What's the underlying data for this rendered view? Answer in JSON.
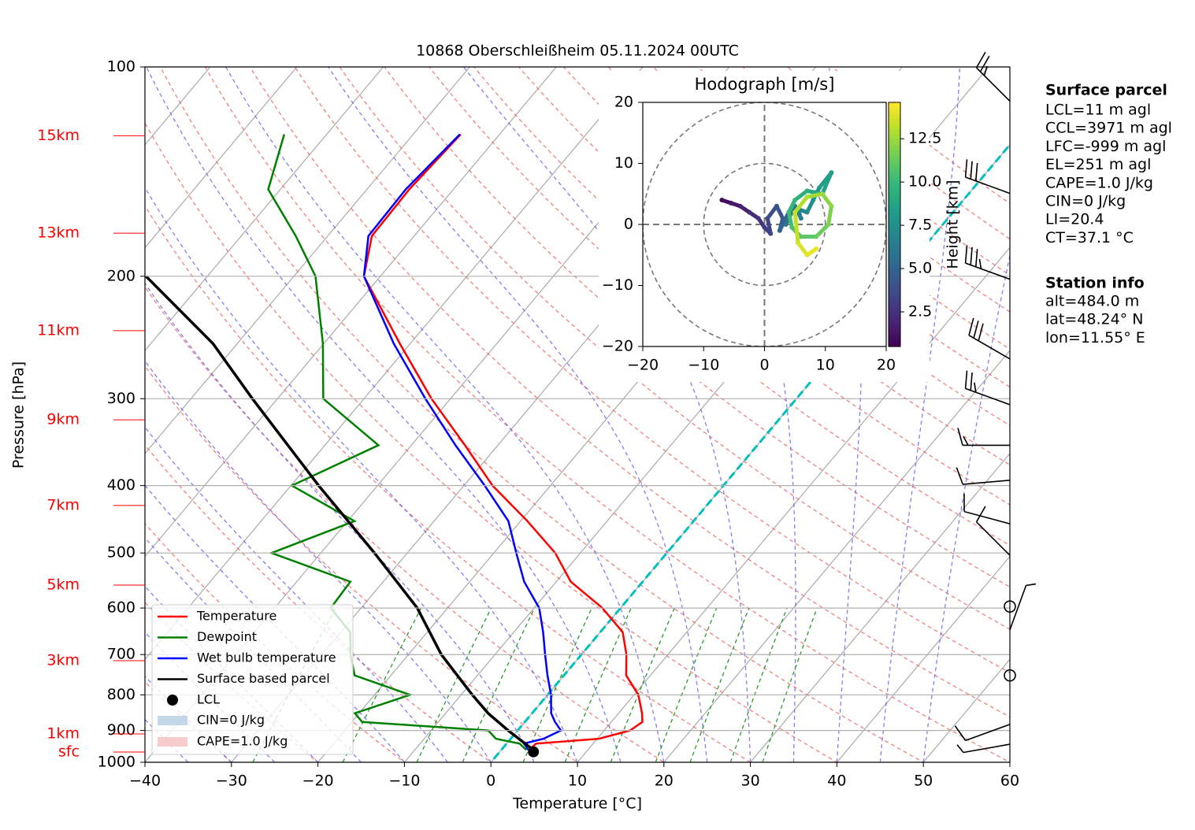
{
  "chart_data": [
    {
      "type": "skewt",
      "title": "10868 Oberschleißheim 05.11.2024 00UTC",
      "xlabel": "Temperature [°C]",
      "ylabel": "Pressure [hPa]",
      "xlim": [
        -40,
        60
      ],
      "ylim": [
        1000,
        100
      ],
      "log_y": true,
      "grid": true,
      "legend": "lower left",
      "xticks": [
        {
          "value": -40,
          "label": "−40"
        },
        {
          "value": -30,
          "label": "−30"
        },
        {
          "value": -20,
          "label": "−20"
        },
        {
          "value": -10,
          "label": "−10"
        },
        0,
        10,
        20,
        30,
        40,
        50,
        60
      ],
      "yticks": [
        100,
        200,
        300,
        400,
        500,
        600,
        700,
        800,
        900,
        1000
      ],
      "pressure": [
        960,
        950,
        940,
        925,
        900,
        875,
        850,
        800,
        750,
        700,
        650,
        600,
        550,
        500,
        450,
        400,
        350,
        300,
        250,
        200,
        175,
        150,
        125
      ],
      "series": [
        {
          "name": "Temperature",
          "color": "#ff0000",
          "values": [
            3.3,
            3.3,
            3.4,
            10.2,
            13.0,
            13.6,
            12.7,
            10.5,
            7.2,
            5.2,
            2.6,
            -2.1,
            -8.3,
            -12.9,
            -19.2,
            -26.7,
            -33.8,
            -42.2,
            -51.2,
            -61.9,
            -64.9,
            -65.1,
            -64.5
          ]
        },
        {
          "name": "Dewpoint",
          "color": "#008000",
          "values": [
            2.9,
            2.2,
            1.5,
            -1.7,
            -3.4,
            -18.8,
            -20.5,
            -15.9,
            -24.2,
            -26.7,
            -28.9,
            -33.5,
            -33.8,
            -45.7,
            -39.2,
            -49.9,
            -43.8,
            -54.7,
            -60.1,
            -67.5,
            -73.7,
            -81.4,
            -84.9
          ]
        },
        {
          "name": "Wet bulb temperature",
          "color": "#0000ff",
          "values": [
            3.1,
            2.6,
            2.0,
            3.8,
            5.0,
            3.5,
            2.2,
            0.4,
            -1.9,
            -4.2,
            -6.6,
            -9.4,
            -13.7,
            -17.4,
            -21.4,
            -27.6,
            -34.9,
            -42.9,
            -51.9,
            -61.9,
            -65.3,
            -65.5,
            -64.6
          ]
        },
        {
          "name": "Surface based parcel",
          "color": "#000000",
          "pressure": [
            960,
            900,
            850,
            800,
            700,
            600,
            500,
            400,
            300,
            250,
            200
          ],
          "values": [
            3.7,
            -1.1,
            -5.1,
            -8.7,
            -16.2,
            -23.5,
            -33.8,
            -46.8,
            -62.9,
            -72.8,
            -87.1
          ]
        }
      ],
      "lcl": {
        "name": "LCL",
        "pressure": 966,
        "temperature": 3.9
      },
      "cin": {
        "name": "CIN=0 J/kg",
        "color": "#aac8e0"
      },
      "cape": {
        "name": "CAPE=1.0 J/kg",
        "color": "#f4b6b6"
      },
      "height_labels": [
        {
          "label": "15km",
          "pressure": 125.6
        },
        {
          "label": "13km",
          "pressure": 173.4
        },
        {
          "label": "11km",
          "pressure": 239.5
        },
        {
          "label": "9km",
          "pressure": 321.7
        },
        {
          "label": "7km",
          "pressure": 427.3
        },
        {
          "label": "5km",
          "pressure": 556.1
        },
        {
          "label": "3km",
          "pressure": 714.4
        },
        {
          "label": "1km",
          "pressure": 910.5
        },
        {
          "label": "sfc",
          "pressure": 966.7
        }
      ],
      "wind_barbs": {
        "pressure": [
          112,
          152,
          202,
          263,
          306,
          350,
          393,
          454,
          504,
          597,
          645,
          750,
          882,
          942
        ],
        "direction": [
          315,
          290,
          290,
          300,
          290,
          270,
          265,
          285,
          315,
          0,
          20,
          0,
          250,
          260
        ],
        "speed": [
          25,
          30,
          35,
          30,
          25,
          15,
          10,
          10,
          10,
          0,
          5,
          0,
          10,
          5
        ]
      },
      "info": {
        "title": "Surface parcel",
        "lines": [
          "LCL=11 m agl",
          "CCL=3971 m agl",
          "LFC=-999 m agl",
          "EL=251 m agl",
          "CAPE=1.0 J/kg",
          "CIN=0 J/kg",
          "LI=20.4",
          "CT=37.1 °C"
        ]
      },
      "station": {
        "title": "Station info",
        "lines": [
          "alt=484.0 m",
          "lat=48.24° N",
          "lon=11.55° E"
        ]
      }
    },
    {
      "type": "hodograph",
      "title": "Hodograph [m/s]",
      "xlim": [
        -20,
        20
      ],
      "ylim": [
        -20,
        20
      ],
      "xticks": [
        {
          "value": -20,
          "label": "−20"
        },
        {
          "value": -10,
          "label": "−10"
        },
        0,
        10,
        20
      ],
      "yticks": [
        {
          "value": -20,
          "label": "−20"
        },
        {
          "value": -10,
          "label": "−10"
        },
        0,
        10,
        20
      ],
      "rings": [
        10,
        20
      ],
      "u": [
        -7,
        -5.5,
        -4,
        -2.5,
        -1,
        0,
        1,
        0.5,
        2,
        3,
        2.5,
        4,
        3.5,
        5,
        6,
        5.5,
        7,
        8,
        9,
        11,
        9.5,
        7,
        5,
        4,
        4.5,
        6,
        8.5,
        10.5,
        11,
        9.5,
        7,
        5,
        5.5,
        7,
        8.5
      ],
      "v": [
        4,
        3.5,
        3,
        2,
        1,
        -0.5,
        -1.5,
        1,
        3,
        1,
        -1,
        2,
        0,
        3,
        1,
        2.5,
        2,
        4,
        6,
        8.5,
        5,
        5.5,
        4,
        2,
        -0.5,
        -2,
        -2,
        0,
        3,
        5,
        4.5,
        2,
        -3,
        -5,
        -4
      ],
      "height": [
        0.6,
        1.0,
        1.4,
        1.8,
        2.2,
        2.6,
        3.0,
        3.4,
        3.8,
        4.2,
        4.6,
        5.0,
        5.4,
        5.8,
        6.2,
        6.6,
        7.0,
        7.4,
        7.8,
        8.2,
        8.6,
        9.0,
        9.4,
        9.8,
        10.2,
        10.6,
        11.0,
        11.4,
        11.8,
        12.2,
        12.6,
        13.0,
        13.4,
        13.8,
        14.2
      ],
      "colorbar": {
        "label": "Height [km]",
        "lim": [
          0.5,
          14.6
        ],
        "ticks": [
          2.5,
          {
            "value": 5,
            "label": "5.0"
          },
          7.5,
          {
            "value": 10,
            "label": "10.0"
          },
          12.5
        ]
      }
    }
  ]
}
